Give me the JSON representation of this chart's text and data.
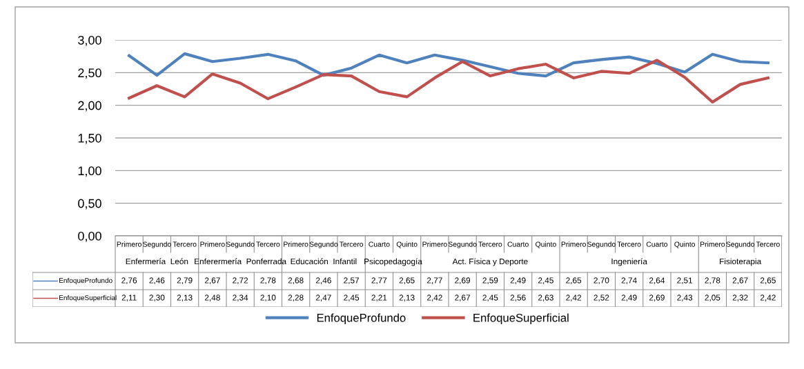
{
  "chart_data": {
    "type": "line",
    "categories": [
      "Primero",
      "Segundo",
      "Tercero",
      "Primero",
      "Segundo",
      "Tercero",
      "Primero",
      "Segundo",
      "Tercero",
      "Cuarto",
      "Quinto",
      "Primero",
      "Segundo",
      "Tercero",
      "Cuarto",
      "Quinto",
      "Primero",
      "Segundo",
      "Tercero",
      "Cuarto",
      "Quinto",
      "Primero",
      "Segundo",
      "Tercero"
    ],
    "annotations": [
      "Enfermería  León",
      "Enferermería  Ponferrada",
      "Educación  Infantil",
      "Psicopedagogía",
      "Act. Física y Deporte",
      "Ingeniería",
      "Fisioterapia"
    ],
    "series": [
      {
        "name": "EnfoqueProfundo",
        "color": "#4f81bd",
        "values": [
          2.76,
          2.46,
          2.79,
          2.67,
          2.72,
          2.78,
          2.68,
          2.46,
          2.57,
          2.77,
          2.65,
          2.77,
          2.69,
          2.59,
          2.49,
          2.45,
          2.65,
          2.7,
          2.74,
          2.64,
          2.51,
          2.78,
          2.67,
          2.65
        ],
        "value_labels": [
          "2,76",
          "2,46",
          "2,79",
          "2,67",
          "2,72",
          "2,78",
          "2,68",
          "2,46",
          "2,57",
          "2,77",
          "2,65",
          "2,77",
          "2,69",
          "2,59",
          "2,49",
          "2,45",
          "2,65",
          "2,70",
          "2,74",
          "2,64",
          "2,51",
          "2,78",
          "2,67",
          "2,65"
        ]
      },
      {
        "name": "EnfoqueSuperficial",
        "color": "#c0504d",
        "values": [
          2.11,
          2.3,
          2.13,
          2.48,
          2.34,
          2.1,
          2.28,
          2.47,
          2.45,
          2.21,
          2.13,
          2.42,
          2.67,
          2.45,
          2.56,
          2.63,
          2.42,
          2.52,
          2.49,
          2.69,
          2.43,
          2.05,
          2.32,
          2.42
        ],
        "value_labels": [
          "2,11",
          "2,30",
          "2,13",
          "2,48",
          "2,34",
          "2,10",
          "2,28",
          "2,47",
          "2,45",
          "2,21",
          "2,13",
          "2,42",
          "2,67",
          "2,45",
          "2,56",
          "2,63",
          "2,42",
          "2,52",
          "2,49",
          "2,69",
          "2,43",
          "2,05",
          "2,32",
          "2,42"
        ]
      }
    ],
    "ylim": [
      0,
      3
    ],
    "yticks": [
      {
        "value": 0,
        "label": "0,00"
      },
      {
        "value": 0.5,
        "label": "0,50"
      },
      {
        "value": 1,
        "label": "1,00"
      },
      {
        "value": 1.5,
        "label": "1,50"
      },
      {
        "value": 2,
        "label": "2,00"
      },
      {
        "value": 2.5,
        "label": "2,50"
      },
      {
        "value": 3,
        "label": "3,00"
      }
    ],
    "grid": "y",
    "legend": "bottom",
    "marker": "none",
    "line_style": "solid"
  }
}
